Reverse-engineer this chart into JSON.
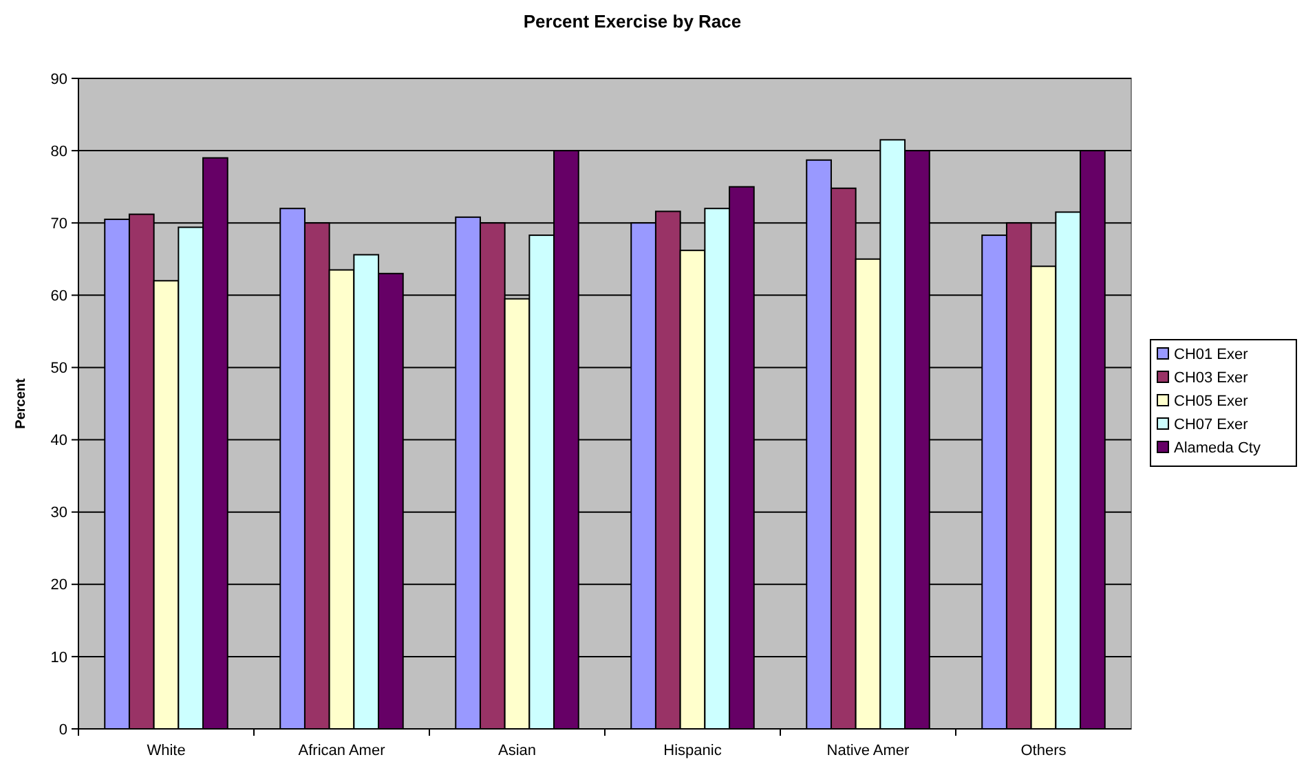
{
  "chart_data": {
    "type": "bar",
    "title": "Percent Exercise by Race",
    "ylabel": "Percent",
    "categories": [
      "White",
      "African Amer",
      "Asian",
      "Hispanic",
      "Native Amer",
      "Others"
    ],
    "series": [
      {
        "name": "CH01 Exer",
        "color": "#9999ff",
        "values": [
          70.5,
          72,
          70.8,
          70,
          78.7,
          68.3
        ]
      },
      {
        "name": "CH03 Exer",
        "color": "#993366",
        "values": [
          71.2,
          70,
          70,
          71.6,
          74.8,
          70
        ]
      },
      {
        "name": "CH05 Exer",
        "color": "#ffffcc",
        "values": [
          62,
          63.5,
          59.5,
          66.2,
          65,
          64
        ]
      },
      {
        "name": "CH07 Exer",
        "color": "#ccffff",
        "values": [
          69.4,
          65.6,
          68.3,
          72,
          81.5,
          71.5
        ]
      },
      {
        "name": "Alameda Cty",
        "color": "#660066",
        "values": [
          79,
          63,
          80,
          75,
          80,
          80
        ]
      }
    ],
    "ylim": [
      0,
      90
    ],
    "yticks": [
      0,
      10,
      20,
      30,
      40,
      50,
      60,
      70,
      80,
      90
    ],
    "grid": "y",
    "legend": "right"
  }
}
